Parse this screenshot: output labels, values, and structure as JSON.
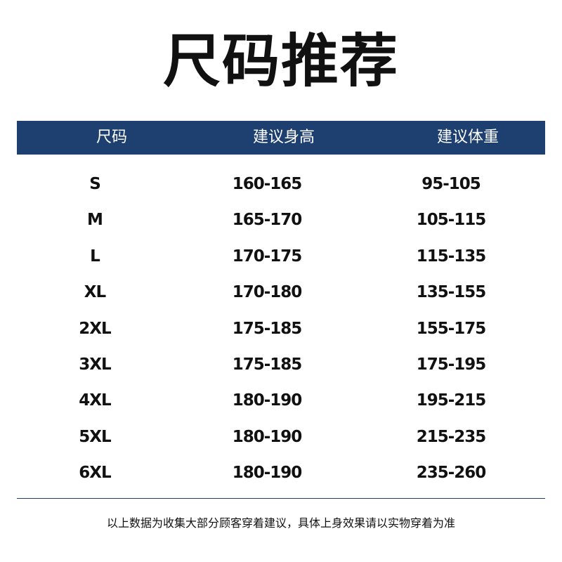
{
  "title": "尺码推荐",
  "header": {
    "columns": [
      "尺码",
      "建议身高",
      "建议体重"
    ]
  },
  "accent_color": "#1e4070",
  "rows": [
    [
      "S",
      "160-165",
      "95-105"
    ],
    [
      "M",
      "165-170",
      "105-115"
    ],
    [
      "L",
      "170-175",
      "115-135"
    ],
    [
      "XL",
      "170-180",
      "135-155"
    ],
    [
      "2XL",
      "175-185",
      "155-175"
    ],
    [
      "3XL",
      "175-185",
      "175-195"
    ],
    [
      "4XL",
      "180-190",
      "195-215"
    ],
    [
      "5XL",
      "180-190",
      "215-235"
    ],
    [
      "6XL",
      "180-190",
      "235-260"
    ]
  ],
  "footer": "以上数据为收集大部分顾客穿着建议，具体上身效果请以实物穿着为准"
}
